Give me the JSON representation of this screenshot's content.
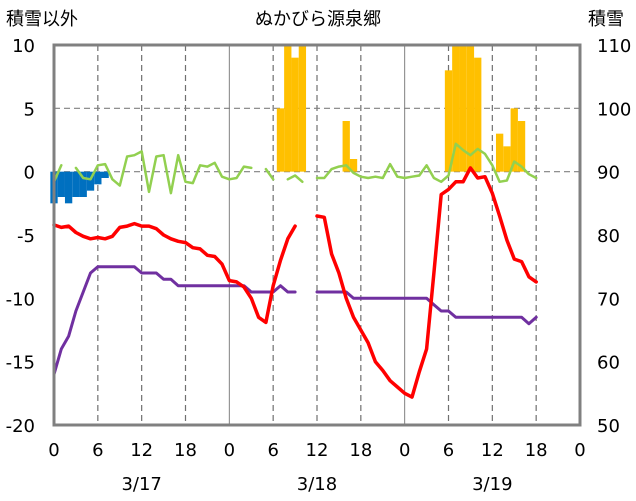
{
  "chart_data": {
    "type": "line",
    "title": "ぬかびら源泉郷",
    "left_axis_label": "積雪以外",
    "right_axis_label": "積雪",
    "left_ylim": [
      -20,
      10
    ],
    "right_ylim": [
      50,
      110
    ],
    "left_ticks": [
      "10",
      "5",
      "0",
      "-5",
      "-10",
      "-15",
      "-20"
    ],
    "right_ticks": [
      "110",
      "100",
      "90",
      "80",
      "70",
      "60",
      "50"
    ],
    "x_ticks": [
      "0",
      "6",
      "12",
      "18",
      "0",
      "6",
      "12",
      "18",
      "0",
      "6",
      "12",
      "18",
      "0"
    ],
    "date_labels": [
      "3/17",
      "3/18",
      "3/19"
    ],
    "hours_total": 72,
    "grid": "dashed-vertical-every-6h-solid-at-midnight, horizontal-at-0-and-5",
    "colors": {
      "temperature": "#ff0000",
      "precipitation": "#ffc000",
      "snow_depth": "#7030a0",
      "wind": "#92d050",
      "negative_bars": "#0070c0"
    },
    "temperature": [
      [
        0,
        -4.2
      ],
      [
        1,
        -4.4
      ],
      [
        2,
        -4.3
      ],
      [
        3,
        -4.8
      ],
      [
        4,
        -5.1
      ],
      [
        5,
        -5.3
      ],
      [
        6,
        -5.2
      ],
      [
        7,
        -5.3
      ],
      [
        8,
        -5.1
      ],
      [
        9,
        -4.4
      ],
      [
        10,
        -4.3
      ],
      [
        11,
        -4.1
      ],
      [
        12,
        -4.3
      ],
      [
        13,
        -4.3
      ],
      [
        14,
        -4.5
      ],
      [
        15,
        -5.0
      ],
      [
        16,
        -5.3
      ],
      [
        17,
        -5.5
      ],
      [
        18,
        -5.6
      ],
      [
        19,
        -6.0
      ],
      [
        20,
        -6.1
      ],
      [
        21,
        -6.6
      ],
      [
        22,
        -6.7
      ],
      [
        23,
        -7.3
      ],
      [
        24,
        -8.6
      ],
      [
        25,
        -8.7
      ],
      [
        26,
        -9.1
      ],
      [
        27,
        -10.0
      ],
      [
        28,
        -11.5
      ],
      [
        29,
        -11.9
      ],
      [
        30,
        -9.0
      ],
      [
        31,
        -7.0
      ],
      [
        32,
        -5.3
      ],
      [
        33,
        -4.3
      ],
      null,
      [
        36,
        -3.5
      ],
      [
        37,
        -3.6
      ],
      [
        38,
        -6.5
      ],
      [
        39,
        -8.0
      ],
      [
        40,
        -10.0
      ],
      [
        41,
        -11.5
      ],
      [
        42,
        -12.5
      ],
      [
        43,
        -13.5
      ],
      [
        44,
        -15.0
      ],
      [
        45,
        -15.7
      ],
      [
        46,
        -16.5
      ],
      [
        47,
        -17.0
      ],
      [
        48,
        -17.5
      ],
      [
        49,
        -17.8
      ],
      [
        50,
        -15.8
      ],
      [
        51,
        -14.0
      ],
      [
        52,
        -8.0
      ],
      [
        53,
        -1.8
      ],
      [
        54,
        -1.4
      ],
      [
        55,
        -0.8
      ],
      [
        56,
        -0.8
      ],
      [
        57,
        0.3
      ],
      [
        58,
        -0.5
      ],
      [
        59,
        -0.4
      ],
      [
        60,
        -1.7
      ],
      [
        61,
        -3.5
      ],
      [
        62,
        -5.4
      ],
      [
        63,
        -6.9
      ],
      [
        64,
        -7.1
      ],
      [
        65,
        -8.3
      ],
      [
        66,
        -8.7
      ]
    ],
    "snow_depth": [
      [
        0,
        58
      ],
      [
        1,
        62
      ],
      [
        2,
        64
      ],
      [
        3,
        68
      ],
      [
        4,
        71
      ],
      [
        5,
        74
      ],
      [
        6,
        75
      ],
      [
        7,
        75
      ],
      [
        8,
        75
      ],
      [
        9,
        75
      ],
      [
        10,
        75
      ],
      [
        11,
        75
      ],
      [
        12,
        74
      ],
      [
        13,
        74
      ],
      [
        14,
        74
      ],
      [
        15,
        73
      ],
      [
        16,
        73
      ],
      [
        17,
        72
      ],
      [
        18,
        72
      ],
      [
        19,
        72
      ],
      [
        20,
        72
      ],
      [
        21,
        72
      ],
      [
        22,
        72
      ],
      [
        23,
        72
      ],
      [
        24,
        72
      ],
      [
        25,
        72
      ],
      [
        26,
        72
      ],
      [
        27,
        71
      ],
      [
        28,
        71
      ],
      [
        29,
        71
      ],
      [
        30,
        71
      ],
      [
        31,
        72
      ],
      [
        32,
        71
      ],
      [
        33,
        71
      ],
      null,
      [
        36,
        71
      ],
      [
        37,
        71
      ],
      [
        38,
        71
      ],
      [
        39,
        71
      ],
      [
        40,
        71
      ],
      [
        41,
        70
      ],
      [
        42,
        70
      ],
      [
        43,
        70
      ],
      [
        44,
        70
      ],
      [
        45,
        70
      ],
      [
        46,
        70
      ],
      [
        47,
        70
      ],
      [
        48,
        70
      ],
      [
        49,
        70
      ],
      [
        50,
        70
      ],
      [
        51,
        70
      ],
      [
        52,
        69
      ],
      [
        53,
        68
      ],
      [
        54,
        68
      ],
      [
        55,
        67
      ],
      [
        56,
        67
      ],
      [
        57,
        67
      ],
      [
        58,
        67
      ],
      [
        59,
        67
      ],
      [
        60,
        67
      ],
      [
        61,
        67
      ],
      [
        62,
        67
      ],
      [
        63,
        67
      ],
      [
        64,
        67
      ],
      [
        65,
        66
      ],
      [
        66,
        67
      ]
    ],
    "wind": [
      [
        0,
        -0.8
      ],
      [
        1,
        0.5
      ],
      null,
      [
        3,
        0.3
      ],
      [
        4,
        -0.5
      ],
      [
        5,
        -0.6
      ],
      [
        6,
        0.5
      ],
      [
        7,
        0.6
      ],
      [
        8,
        -0.6
      ],
      [
        9,
        -1.1
      ],
      [
        10,
        1.2
      ],
      [
        11,
        1.3
      ],
      [
        12,
        1.6
      ],
      [
        13,
        -1.6
      ],
      [
        14,
        1.2
      ],
      [
        15,
        1.3
      ],
      [
        16,
        -1.7
      ],
      [
        17,
        1.3
      ],
      [
        18,
        -0.8
      ],
      [
        19,
        -0.9
      ],
      [
        20,
        0.5
      ],
      [
        21,
        0.4
      ],
      [
        22,
        0.7
      ],
      [
        23,
        -0.4
      ],
      [
        24,
        -0.6
      ],
      [
        25,
        -0.5
      ],
      [
        26,
        0.4
      ],
      [
        27,
        0.3
      ],
      null,
      [
        29,
        0.2
      ],
      [
        30,
        -0.6
      ],
      null,
      [
        32,
        -0.6
      ],
      [
        33,
        -0.3
      ],
      [
        34,
        -0.8
      ],
      null,
      [
        36,
        -0.5
      ],
      [
        37,
        -0.5
      ],
      [
        38,
        0.2
      ],
      [
        39,
        0.4
      ],
      [
        40,
        0.5
      ],
      [
        41,
        -0.1
      ],
      [
        42,
        -0.4
      ],
      [
        43,
        -0.5
      ],
      [
        44,
        -0.4
      ],
      [
        45,
        -0.5
      ],
      [
        46,
        0.6
      ],
      [
        47,
        -0.4
      ],
      [
        48,
        -0.5
      ],
      [
        49,
        -0.4
      ],
      [
        50,
        -0.3
      ],
      [
        51,
        0.5
      ],
      [
        52,
        -0.5
      ],
      [
        53,
        -0.8
      ],
      [
        54,
        -0.3
      ],
      [
        55,
        2.2
      ],
      [
        56,
        1.7
      ],
      [
        57,
        1.3
      ],
      [
        58,
        1.8
      ],
      [
        59,
        1.4
      ],
      [
        60,
        0.5
      ],
      [
        61,
        -0.8
      ],
      [
        62,
        -0.7
      ],
      [
        63,
        0.8
      ],
      [
        64,
        0.4
      ],
      [
        65,
        -0.2
      ],
      [
        66,
        -0.5
      ]
    ],
    "precipitation": [
      [
        31,
        5.0
      ],
      [
        32,
        10.0
      ],
      [
        33,
        9.0
      ],
      [
        34,
        10.0
      ],
      [
        40,
        4.0
      ],
      [
        41,
        1.0
      ],
      [
        54,
        8.0
      ],
      [
        55,
        10.0
      ],
      [
        56,
        10.0
      ],
      [
        57,
        10.0
      ],
      [
        58,
        9.0
      ],
      [
        61,
        3.0
      ],
      [
        62,
        2.0
      ],
      [
        63,
        5.0
      ],
      [
        64,
        4.0
      ]
    ],
    "negative_bars": [
      [
        0,
        -2.5
      ],
      [
        1,
        -2.0
      ],
      [
        2,
        -2.5
      ],
      [
        3,
        -2.0
      ],
      [
        4,
        -2.0
      ],
      [
        5,
        -1.5
      ],
      [
        6,
        -1.0
      ],
      [
        7,
        -0.5
      ]
    ]
  }
}
